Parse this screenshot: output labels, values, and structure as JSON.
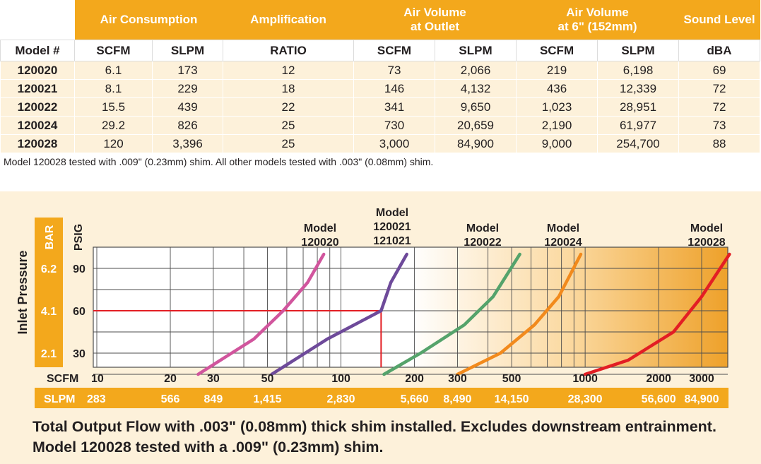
{
  "table": {
    "group_headers": [
      "Air Consumption",
      "Amplification",
      "Air Volume\nat Outlet",
      "Air Volume\nat 6\" (152mm)",
      "Sound Level"
    ],
    "units": [
      "Model #",
      "SCFM",
      "SLPM",
      "RATIO",
      "SCFM",
      "SLPM",
      "SCFM",
      "SLPM",
      "dBA"
    ],
    "rows": [
      [
        "120020",
        "6.1",
        "173",
        "12",
        "73",
        "2,066",
        "219",
        "6,198",
        "69"
      ],
      [
        "120021",
        "8.1",
        "229",
        "18",
        "146",
        "4,132",
        "436",
        "12,339",
        "72"
      ],
      [
        "120022",
        "15.5",
        "439",
        "22",
        "341",
        "9,650",
        "1,023",
        "28,951",
        "72"
      ],
      [
        "120024",
        "29.2",
        "826",
        "25",
        "730",
        "20,659",
        "2,190",
        "61,977",
        "73"
      ],
      [
        "120028",
        "120",
        "3,396",
        "25",
        "3,000",
        "84,900",
        "9,000",
        "254,700",
        "88"
      ]
    ]
  },
  "note": "Model 120028 tested with .009\" (0.23mm) shim. All other models tested with .003\" (0.08mm) shim.",
  "caption": "Total Output Flow with .003\" (0.08mm) thick shim installed. Excludes downstream entrainment. Model 120028 tested with a .009\" (0.23mm) shim.",
  "colors": {
    "orange": "#f3a81c",
    "panel": "#fdf1da",
    "pink": "#d1559d",
    "purple": "#6e4a9a",
    "green": "#55a36b",
    "orange_curve": "#f28a1c",
    "red": "#e31e24",
    "guide": "#e31e24"
  },
  "chart_data": {
    "type": "line",
    "title": "",
    "ylabel": "Inlet Pressure",
    "y_units": [
      "BAR",
      "PSIG"
    ],
    "y_ticks": [
      {
        "psig": "90",
        "bar": "6.2"
      },
      {
        "psig": "60",
        "bar": "4.1"
      },
      {
        "psig": "30",
        "bar": "2.1"
      }
    ],
    "xlabel_primary": "SCFM",
    "xlabel_secondary": "SLPM",
    "x_scale": "log",
    "x_ticks": [
      {
        "scfm": "10",
        "slpm": "283"
      },
      {
        "scfm": "20",
        "slpm": "566"
      },
      {
        "scfm": "30",
        "slpm": "849"
      },
      {
        "scfm": "50",
        "slpm": "1,415"
      },
      {
        "scfm": "100",
        "slpm": "2,830"
      },
      {
        "scfm": "200",
        "slpm": "5,660"
      },
      {
        "scfm": "300",
        "slpm": "8,490"
      },
      {
        "scfm": "500",
        "slpm": "14,150"
      },
      {
        "scfm": "1000",
        "slpm": "28,300"
      },
      {
        "scfm": "2000",
        "slpm": "56,600"
      },
      {
        "scfm": "3000",
        "slpm": "84,900"
      }
    ],
    "xlim": [
      10,
      5000
    ],
    "ylim": [
      15,
      105
    ],
    "reference_line": {
      "psig": 60,
      "scfm": 146
    },
    "series": [
      {
        "name": "Model 120020",
        "label_lines": [
          "Model",
          "120020"
        ],
        "color_key": "pink",
        "points": [
          [
            26,
            15
          ],
          [
            44,
            40
          ],
          [
            58,
            60
          ],
          [
            73,
            80
          ],
          [
            85,
            100
          ]
        ]
      },
      {
        "name": "Model 120021 / 121021",
        "label_lines": [
          "Model",
          "120021",
          "121021"
        ],
        "color_key": "purple",
        "points": [
          [
            52,
            15
          ],
          [
            88,
            40
          ],
          [
            146,
            60
          ],
          [
            160,
            80
          ],
          [
            186,
            100
          ]
        ]
      },
      {
        "name": "Model 120022",
        "label_lines": [
          "Model",
          "120022"
        ],
        "color_key": "green",
        "points": [
          [
            150,
            15
          ],
          [
            212,
            30
          ],
          [
            320,
            50
          ],
          [
            420,
            70
          ],
          [
            540,
            100
          ]
        ]
      },
      {
        "name": "Model 120024",
        "label_lines": [
          "Model",
          "120024"
        ],
        "color_key": "orange_curve",
        "points": [
          [
            300,
            15
          ],
          [
            450,
            30
          ],
          [
            620,
            50
          ],
          [
            780,
            70
          ],
          [
            960,
            100
          ]
        ]
      },
      {
        "name": "Model 120028",
        "label_lines": [
          "Model",
          "120028"
        ],
        "color_key": "red",
        "points": [
          [
            1000,
            15
          ],
          [
            1500,
            25
          ],
          [
            2300,
            45
          ],
          [
            3000,
            70
          ],
          [
            3900,
            100
          ]
        ]
      }
    ]
  }
}
